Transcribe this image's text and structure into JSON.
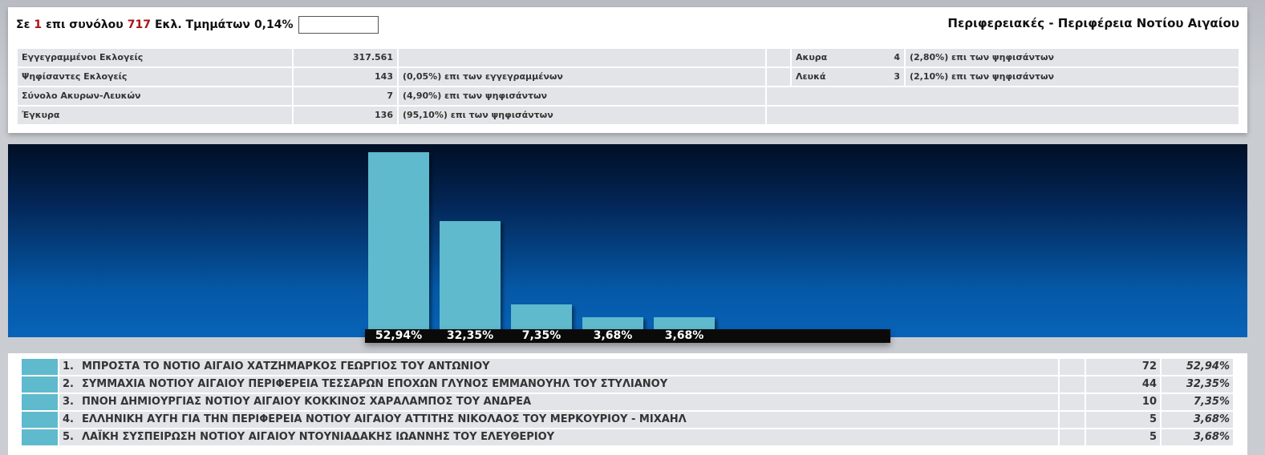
{
  "header": {
    "prefix": "Σε",
    "counted": "1",
    "middle": "επι συνόλου",
    "total": "717",
    "suffix": "Εκλ. Τμημάτων",
    "percent": "0,14%",
    "search_value": "",
    "title": "Περιφερειακές - Περιφέρεια Νοτίου Αιγαίου"
  },
  "stats": {
    "registered_label": "Εγγεγραμμένοι Εκλογείς",
    "registered_value": "317.561",
    "voted_label": "Ψηφίσαντες Εκλογείς",
    "voted_value": "143",
    "voted_note": "(0,05%) επι των εγγεγραμμένων",
    "invalid_blank_label": "Σύνολο Ακυρων-Λευκών",
    "invalid_blank_value": "7",
    "invalid_blank_note": "(4,90%) επι των ψηφισάντων",
    "valid_label": "Έγκυρα",
    "valid_value": "136",
    "valid_note": "(95,10%) επι των ψηφισάντων",
    "void_label": "Ακυρα",
    "void_value": "4",
    "void_note": "(2,80%) επι των ψηφισάντων",
    "blank_label": "Λευκά",
    "blank_value": "3",
    "blank_note": "(2,10%) επι των ψηφισάντων"
  },
  "chart_data": {
    "type": "bar",
    "categories": [
      "ΜΠΡΟΣΤΑ ΤΟ ΝΟΤΙΟ ΑΙΓΑΙΟ ΧΑΤΖΗΜΑΡΚΟΣ ΓΕΩΡΓΙΟΣ ΤΟΥ ΑΝΤΩΝΙΟΥ",
      "ΣΥΜΜΑΧΙΑ ΝΟΤΙΟΥ ΑΙΓΑΙΟΥ ΠΕΡΙΦΕΡΕΙΑ ΤΕΣΣΑΡΩΝ ΕΠΟΧΩΝ ΓΛΥΝΟΣ ΕΜΜΑΝΟΥΗΛ ΤΟΥ ΣΤΥΛΙΑΝΟΥ",
      "ΠΝΟΗ ΔΗΜΙΟΥΡΓΙΑΣ ΝΟΤΙΟΥ ΑΙΓΑΙΟΥ ΚΟΚΚΙΝΟΣ ΧΑΡΑΛΑΜΠΟΣ ΤΟΥ ΑΝΔΡΕΑ",
      "ΕΛΛΗΝΙΚΗ ΑΥΓΗ ΓΙΑ ΤΗΝ ΠΕΡΙΦΕΡΕΙΑ ΝΟΤΙΟΥ ΑΙΓΑΙΟΥ ΑΤΤΙΤΗΣ ΝΙΚΟΛΑΟΣ ΤΟΥ ΜΕΡΚΟΥΡΙΟΥ - ΜΙΧΑΗΛ",
      "ΛΑΪΚΗ ΣΥΣΠΕΙΡΩΣΗ ΝΟΤΙΟΥ ΑΙΓΑΙΟΥ ΝΤΟΥΝΙΑΔΑΚΗΣ ΙΩΑΝΝΗΣ ΤΟΥ ΕΛΕΥΘΕΡΙΟΥ"
    ],
    "values": [
      52.94,
      32.35,
      7.35,
      3.68,
      3.68
    ],
    "labels": [
      "52,94%",
      "32,35%",
      "7,35%",
      "3,68%",
      "3,68%"
    ],
    "votes": [
      "72",
      "44",
      "10",
      "5",
      "5"
    ],
    "positions": [
      "1.",
      "2.",
      "3.",
      "4.",
      "5."
    ],
    "pct_text": [
      "52,94%",
      "32,35%",
      "7,35%",
      "3,68%",
      "3,68%"
    ],
    "bar_color": "#5fbacd",
    "ylim": [
      0,
      52.94
    ]
  }
}
